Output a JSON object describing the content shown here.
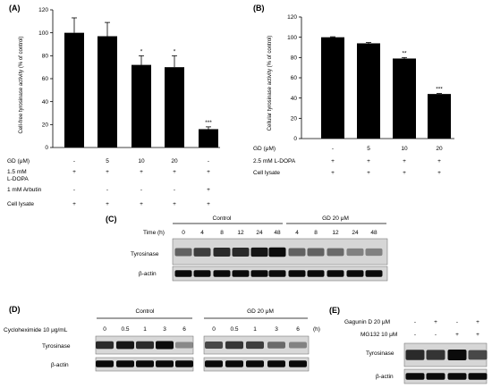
{
  "chart_data": [
    {
      "panel": "(A)",
      "type": "bar",
      "ylabel": "Cell-free tyrosinase activity (% of control)",
      "ylim": [
        0,
        120
      ],
      "yticks": [
        0,
        20,
        40,
        60,
        80,
        100,
        120
      ],
      "values": [
        100,
        97,
        72,
        70,
        16
      ],
      "errors": [
        13,
        12,
        8,
        10,
        2
      ],
      "significance": [
        "",
        "",
        "*",
        "*",
        "***"
      ],
      "conditions": [
        {
          "label": "GD (μM)",
          "values": [
            "-",
            "5",
            "10",
            "20",
            "-"
          ]
        },
        {
          "label": "1.5 mM L-DOPA",
          "values": [
            "+",
            "+",
            "+",
            "+",
            "+"
          ]
        },
        {
          "label": "1 mM Arbutin",
          "values": [
            "-",
            "-",
            "-",
            "-",
            "+"
          ]
        },
        {
          "label": "Cell lysate",
          "values": [
            "+",
            "+",
            "+",
            "+",
            "+"
          ]
        }
      ]
    },
    {
      "panel": "(B)",
      "type": "bar",
      "ylabel": "Cellular tyrosinase activity (% of control)",
      "ylim": [
        0,
        120
      ],
      "yticks": [
        0,
        20,
        40,
        60,
        80,
        100,
        120
      ],
      "values": [
        100,
        94,
        79,
        44
      ],
      "errors": [
        0.5,
        0.8,
        1.0,
        0.5
      ],
      "significance": [
        "",
        "",
        "**",
        "***"
      ],
      "conditions": [
        {
          "label": "GD (μM)",
          "values": [
            "-",
            "5",
            "10",
            "20"
          ]
        },
        {
          "label": "2.5 mM L-DOPA",
          "values": [
            "+",
            "+",
            "+",
            "+"
          ]
        },
        {
          "label": "Cell lysate",
          "values": [
            "+",
            "+",
            "+",
            "+"
          ]
        }
      ]
    }
  ],
  "blots": {
    "C": {
      "panel": "(C)",
      "time_label": "Time (h)",
      "group1": "Control",
      "group2": "GD 20 μM",
      "times": [
        "0",
        "4",
        "8",
        "12",
        "24",
        "48",
        "4",
        "8",
        "12",
        "24",
        "48"
      ],
      "band1_label": "Tyrosinase",
      "band2_label": "β-actin",
      "tyrosinase_intensity": [
        0.55,
        0.75,
        0.85,
        0.85,
        0.95,
        1.0,
        0.55,
        0.55,
        0.5,
        0.35,
        0.35
      ],
      "actin_intensity": [
        1,
        1,
        1,
        1,
        1,
        1,
        1,
        1,
        1,
        1,
        1
      ]
    },
    "D": {
      "panel": "(D)",
      "treatment_label": "Cycloheximide 10 μg/mL",
      "group1": "Control",
      "group2": "GD 20 μM",
      "unit": "(h)",
      "times": [
        "0",
        "0.5",
        "1",
        "3",
        "6",
        "0",
        "0.5",
        "1",
        "3",
        "6"
      ],
      "band1_label": "Tyrosinase",
      "band2_label": "β-actin",
      "tyrosinase_intensity": [
        0.85,
        0.95,
        0.85,
        1.0,
        0.3,
        0.7,
        0.8,
        0.75,
        0.5,
        0.35
      ],
      "actin_intensity": [
        1,
        1,
        1,
        1,
        1,
        1,
        1,
        1,
        1,
        1
      ]
    },
    "E": {
      "panel": "(E)",
      "row1_label": "Gagunin D 20 μM",
      "row1_values": [
        "-",
        "+",
        "-",
        "+"
      ],
      "row2_label": "MG132 10 μM",
      "row2_values": [
        "-",
        "-",
        "+",
        "+"
      ],
      "band1_label": "Tyrosinase",
      "band2_label": "β-actin",
      "tyrosinase_intensity": [
        0.85,
        0.8,
        1.0,
        0.7
      ],
      "actin_intensity": [
        1,
        1,
        1,
        1
      ]
    }
  }
}
